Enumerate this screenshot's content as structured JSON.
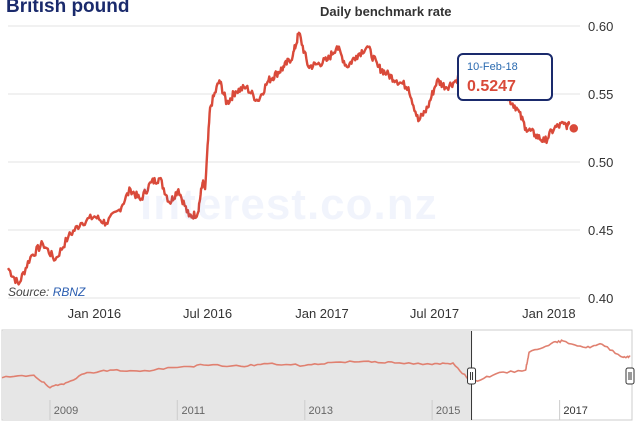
{
  "chart_data": {
    "type": "line",
    "title": "British pound",
    "subtitle": "Daily benchmark rate",
    "source_prefix": "Source:",
    "source_name": "RBNZ",
    "watermark": "interest.co.nz",
    "ylim": [
      0.4,
      0.6
    ],
    "yticks": [
      "0.60",
      "0.55",
      "0.50",
      "0.45",
      "0.40"
    ],
    "yticks_values": [
      0.6,
      0.55,
      0.5,
      0.45,
      0.4
    ],
    "xticks": [
      "Jan 2016",
      "Jul 2016",
      "Jan 2017",
      "Jul 2017",
      "Jan 2018"
    ],
    "xticks_dates": [
      "2016-01-01",
      "2016-07-01",
      "2017-01-01",
      "2017-07-01",
      "2018-01-01"
    ],
    "xlim": [
      "2015-08-15",
      "2018-02-20"
    ],
    "series": [
      {
        "color": "#d94a3a",
        "x": [
          "2015-08-15",
          "2015-09-01",
          "2015-09-20",
          "2015-10-10",
          "2015-10-30",
          "2015-11-20",
          "2015-12-10",
          "2016-01-01",
          "2016-01-20",
          "2016-02-10",
          "2016-02-28",
          "2016-03-15",
          "2016-04-01",
          "2016-04-15",
          "2016-05-01",
          "2016-05-15",
          "2016-06-01",
          "2016-06-15",
          "2016-06-23",
          "2016-06-27",
          "2016-07-05",
          "2016-07-20",
          "2016-08-01",
          "2016-08-15",
          "2016-09-01",
          "2016-09-20",
          "2016-10-07",
          "2016-10-20",
          "2016-11-01",
          "2016-11-15",
          "2016-11-25",
          "2016-12-10",
          "2016-12-25",
          "2017-01-10",
          "2017-01-25",
          "2017-02-10",
          "2017-02-25",
          "2017-03-15",
          "2017-04-01",
          "2017-04-15",
          "2017-05-01",
          "2017-05-20",
          "2017-06-05",
          "2017-06-20",
          "2017-07-05",
          "2017-07-20",
          "2017-08-05",
          "2017-08-20",
          "2017-09-01",
          "2017-09-15",
          "2017-09-25",
          "2017-10-10",
          "2017-10-25",
          "2017-11-10",
          "2017-11-25",
          "2017-12-10",
          "2017-12-25",
          "2018-01-10",
          "2018-01-25",
          "2018-02-10"
        ],
        "y": [
          0.422,
          0.41,
          0.43,
          0.44,
          0.428,
          0.445,
          0.455,
          0.46,
          0.455,
          0.465,
          0.48,
          0.472,
          0.485,
          0.488,
          0.47,
          0.48,
          0.46,
          0.462,
          0.485,
          0.48,
          0.54,
          0.56,
          0.543,
          0.552,
          0.555,
          0.545,
          0.56,
          0.565,
          0.57,
          0.578,
          0.595,
          0.57,
          0.572,
          0.575,
          0.585,
          0.57,
          0.578,
          0.585,
          0.57,
          0.565,
          0.56,
          0.555,
          0.53,
          0.54,
          0.56,
          0.555,
          0.56,
          0.57,
          0.574,
          0.565,
          0.56,
          0.555,
          0.548,
          0.54,
          0.525,
          0.52,
          0.515,
          0.525,
          0.528,
          0.5247
        ]
      }
    ],
    "tooltip": {
      "date": "10-Feb-18",
      "value": "0.5247"
    },
    "navigator": {
      "labels": [
        "2009",
        "2011",
        "2013",
        "2015",
        "2017"
      ],
      "label_dates": [
        "2009-01-01",
        "2011-01-01",
        "2013-01-01",
        "2015-01-01",
        "2017-01-01"
      ],
      "xlim": [
        "2008-04-01",
        "2018-02-20"
      ],
      "selected_range": [
        "2015-08-15",
        "2018-02-20"
      ],
      "x": [
        "2008-04-01",
        "2008-10-01",
        "2009-01-01",
        "2009-04-01",
        "2009-08-01",
        "2010-01-01",
        "2010-06-01",
        "2011-01-01",
        "2011-06-01",
        "2012-01-01",
        "2012-06-01",
        "2013-01-01",
        "2013-06-01",
        "2014-01-01",
        "2014-06-01",
        "2015-01-01",
        "2015-05-01",
        "2015-08-15",
        "2016-01-01",
        "2016-06-20",
        "2016-07-10",
        "2016-11-15",
        "2017-01-20",
        "2017-06-01",
        "2017-09-01",
        "2018-01-01",
        "2018-02-10"
      ],
      "y": [
        0.44,
        0.45,
        0.4,
        0.42,
        0.46,
        0.47,
        0.465,
        0.48,
        0.49,
        0.485,
        0.495,
        0.488,
        0.5,
        0.505,
        0.498,
        0.492,
        0.498,
        0.422,
        0.455,
        0.47,
        0.54,
        0.575,
        0.585,
        0.558,
        0.572,
        0.52,
        0.5247
      ]
    }
  }
}
